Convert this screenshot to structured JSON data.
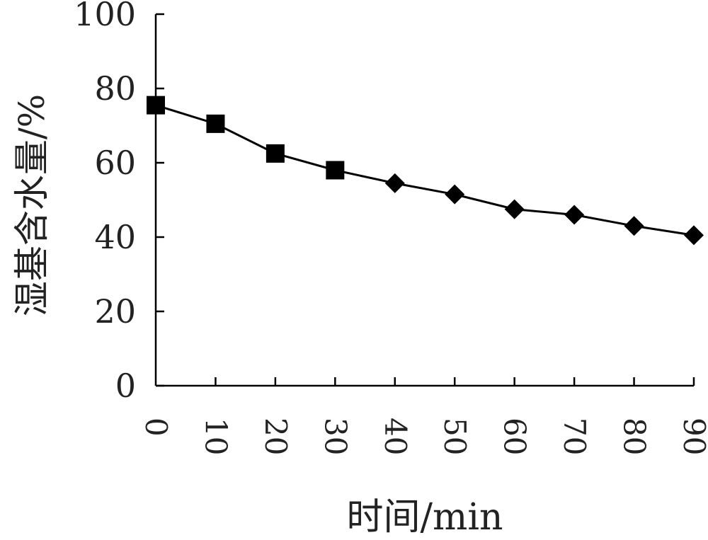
{
  "chart_data": {
    "type": "line",
    "title": "",
    "xlabel": "时间/min",
    "ylabel": "湿基含水量/%",
    "xlim": [
      0,
      90
    ],
    "ylim": [
      0,
      100
    ],
    "x_ticks": [
      "0",
      "10",
      "20",
      "30",
      "40",
      "50",
      "60",
      "70",
      "80",
      "90"
    ],
    "y_ticks": [
      "0",
      "20",
      "40",
      "60",
      "80",
      "100"
    ],
    "grid": false,
    "series": [
      {
        "color": "#000000",
        "x": [
          0,
          10,
          20,
          30,
          40,
          50,
          60,
          70,
          80,
          90
        ],
        "values": [
          75.5,
          70.5,
          62.5,
          58.0,
          54.5,
          51.5,
          47.5,
          46.0,
          43.0,
          40.5
        ],
        "markers": [
          "square",
          "square",
          "square",
          "square",
          "diamond",
          "diamond",
          "diamond",
          "diamond",
          "diamond",
          "diamond"
        ]
      }
    ]
  }
}
